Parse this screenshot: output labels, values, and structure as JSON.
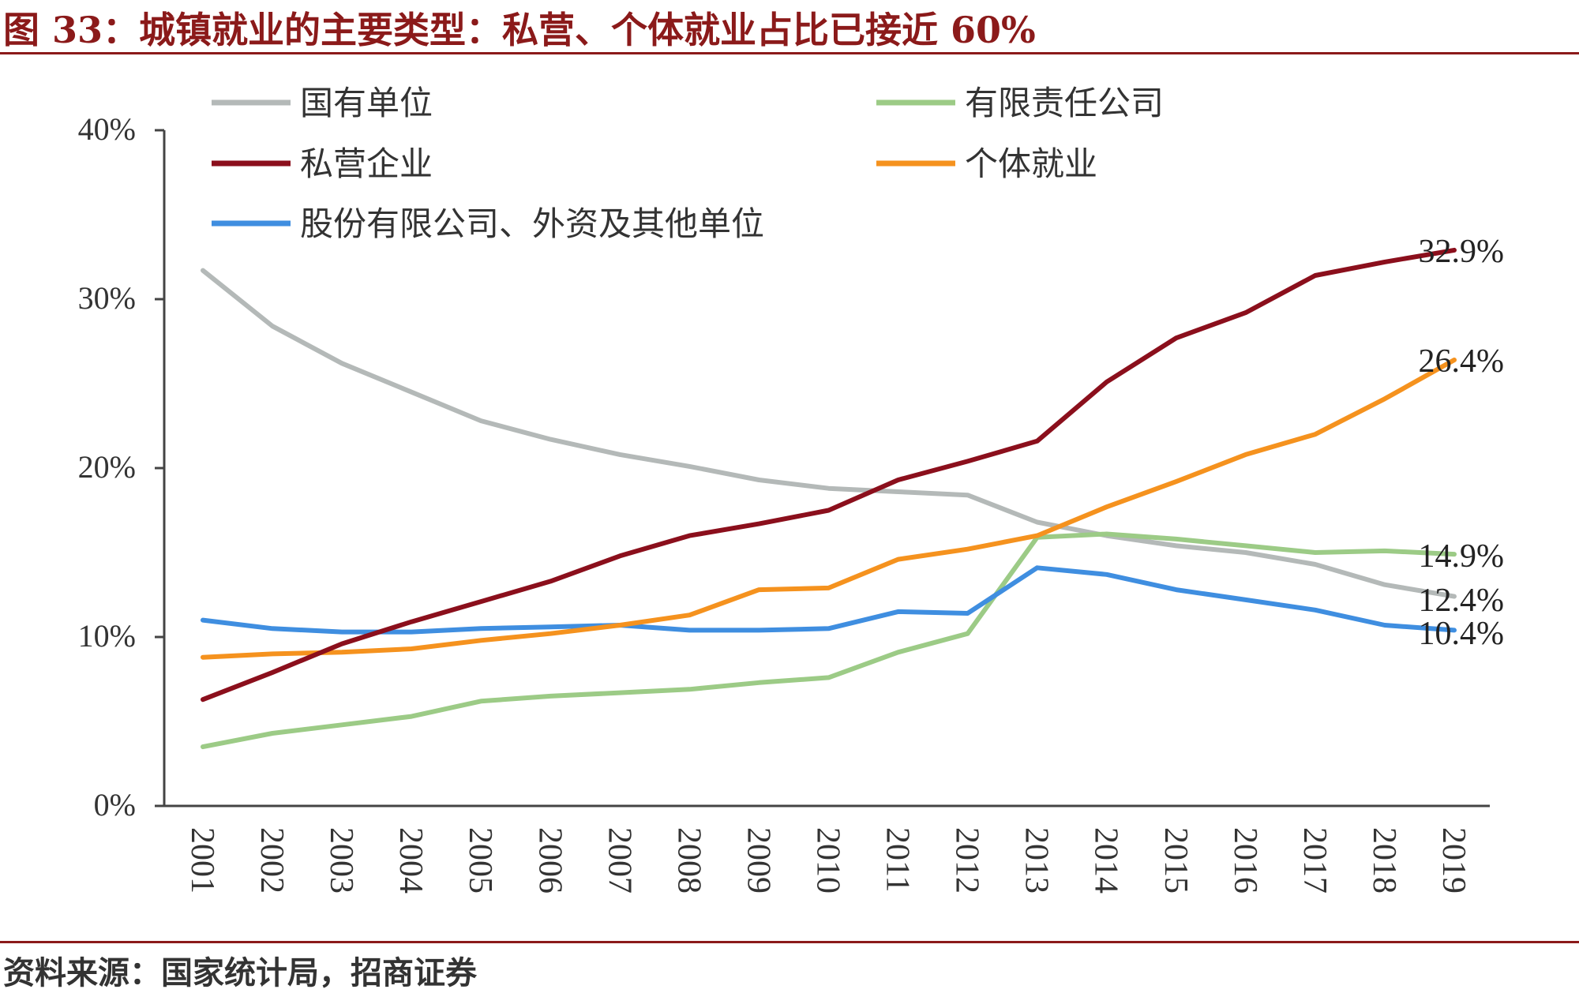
{
  "header": {
    "title": "图 33：城镇就业的主要类型：私营、个体就业占比已接近 60%"
  },
  "footer": {
    "source": "资料来源：国家统计局，招商证券"
  },
  "chart_data": {
    "type": "line",
    "title": "图 33：城镇就业的主要类型：私营、个体就业占比已接近 60%",
    "xlabel": "",
    "ylabel": "",
    "x": [
      "2001",
      "2002",
      "2003",
      "2004",
      "2005",
      "2006",
      "2007",
      "2008",
      "2009",
      "2010",
      "2011",
      "2012",
      "2013",
      "2014",
      "2015",
      "2016",
      "2017",
      "2018",
      "2019"
    ],
    "ylim": [
      0,
      40
    ],
    "yticks": [
      "0%",
      "10%",
      "20%",
      "30%",
      "40%"
    ],
    "grid": false,
    "legend_position": "top",
    "series": [
      {
        "name": "国有单位",
        "color": "#b4b9b8",
        "values": [
          31.7,
          28.4,
          26.2,
          24.5,
          22.8,
          21.7,
          20.8,
          20.1,
          19.3,
          18.8,
          18.6,
          18.4,
          16.8,
          16.0,
          15.4,
          15.0,
          14.3,
          13.1,
          12.4
        ]
      },
      {
        "name": "有限责任公司",
        "color": "#9ccb86",
        "values": [
          3.5,
          4.3,
          4.8,
          5.3,
          6.2,
          6.5,
          6.7,
          6.9,
          7.3,
          7.6,
          9.1,
          10.2,
          15.9,
          16.1,
          15.8,
          15.4,
          15.0,
          15.1,
          14.9
        ]
      },
      {
        "name": "私营企业",
        "color": "#8b0f1c",
        "values": [
          6.3,
          7.9,
          9.6,
          10.9,
          12.1,
          13.3,
          14.8,
          16.0,
          16.7,
          17.5,
          19.3,
          20.4,
          21.6,
          25.1,
          27.7,
          29.2,
          31.4,
          32.2,
          32.9
        ]
      },
      {
        "name": "个体就业",
        "color": "#f5921e",
        "values": [
          8.8,
          9.0,
          9.1,
          9.3,
          9.8,
          10.2,
          10.7,
          11.3,
          12.8,
          12.9,
          14.6,
          15.2,
          16.0,
          17.7,
          19.2,
          20.8,
          22.0,
          24.1,
          26.4
        ]
      },
      {
        "name": "股份有限公司、外资及其他单位",
        "color": "#3f8ee0",
        "values": [
          11.0,
          10.5,
          10.3,
          10.3,
          10.5,
          10.6,
          10.7,
          10.4,
          10.4,
          10.5,
          11.5,
          11.4,
          14.1,
          13.7,
          12.8,
          12.2,
          11.6,
          10.7,
          10.4
        ]
      }
    ],
    "end_labels": [
      {
        "series": "私营企业",
        "text": "32.9%"
      },
      {
        "series": "个体就业",
        "text": "26.4%"
      },
      {
        "series": "有限责任公司",
        "text": "14.9%"
      },
      {
        "series": "国有单位",
        "text": "12.4%"
      },
      {
        "series": "股份有限公司、外资及其他单位",
        "text": "10.4%"
      }
    ]
  }
}
